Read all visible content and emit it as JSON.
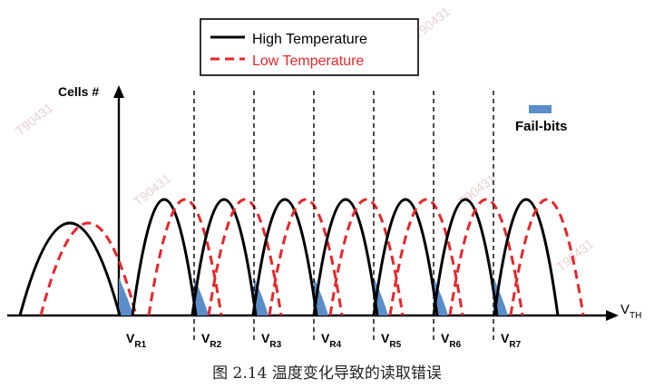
{
  "legend": {
    "high_label": "High Temperature",
    "low_label": "Low Temperature",
    "high_color": "#000000",
    "low_color": "#e8262a"
  },
  "axes": {
    "y_label": "Cells #",
    "x_label_main": "V",
    "x_label_sub": "TH"
  },
  "fail_bits": {
    "label": "Fail-bits",
    "color": "#5b8ec9"
  },
  "read_voltages": [
    {
      "main": "V",
      "sub": "R1"
    },
    {
      "main": "V",
      "sub": "R2"
    },
    {
      "main": "V",
      "sub": "R3"
    },
    {
      "main": "V",
      "sub": "R4"
    },
    {
      "main": "V",
      "sub": "R5"
    },
    {
      "main": "V",
      "sub": "R6"
    },
    {
      "main": "V",
      "sub": "R7"
    }
  ],
  "watermark": "T90431",
  "caption": "图 2.14 温度变化导致的读取错误"
}
